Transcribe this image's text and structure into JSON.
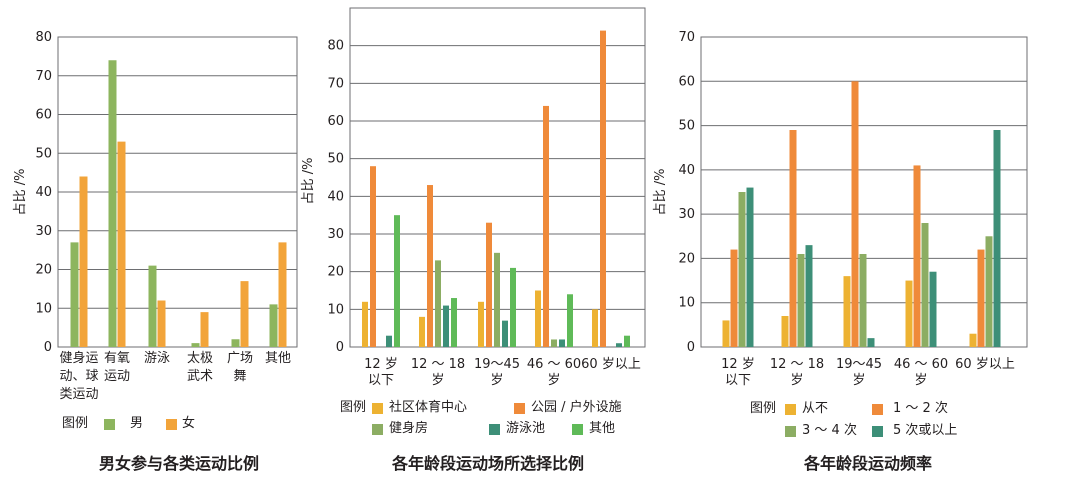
{
  "colors": {
    "male": "#8db55e",
    "female": "#f2a43a",
    "community": "#edb232",
    "park": "#ef8a3a",
    "gym": "#8cad63",
    "pool": "#3d8f78",
    "other": "#5fba58",
    "never": "#edb232",
    "f1_2": "#ef8a3a",
    "f3_4": "#8cad63",
    "f5plus": "#3d8f78"
  },
  "chart_data": [
    {
      "type": "bar",
      "title": "男女参与各类运动比例",
      "ylabel": "占比 /%",
      "ylim": [
        0,
        80
      ],
      "yticks": [
        "0",
        "10",
        "20",
        "30",
        "40",
        "50",
        "60",
        "70",
        "80"
      ],
      "categories": [
        [
          "健身运",
          "动、球",
          "类运动"
        ],
        [
          "有氧",
          "运动"
        ],
        [
          "游泳"
        ],
        [
          "太极",
          "武术"
        ],
        [
          "广场",
          "舞"
        ],
        [
          "其他"
        ]
      ],
      "legend_title": "图例",
      "series": [
        {
          "name": "男",
          "color_key": "male",
          "values": [
            27,
            74,
            21,
            1,
            2,
            11
          ]
        },
        {
          "name": "女",
          "color_key": "female",
          "values": [
            44,
            53,
            12,
            9,
            17,
            27
          ]
        }
      ]
    },
    {
      "type": "bar",
      "title": "各年龄段运动场所选择比例",
      "ylabel": "占比 /%",
      "ylim": [
        0,
        90
      ],
      "yticks": [
        "0",
        "10",
        "20",
        "30",
        "40",
        "50",
        "60",
        "70",
        "80"
      ],
      "categories": [
        [
          "12 岁",
          "以下"
        ],
        [
          "12 ～ 18",
          "岁"
        ],
        [
          "19～45",
          "岁"
        ],
        [
          "46 ～ 60",
          "岁"
        ],
        [
          "60 岁以上"
        ]
      ],
      "legend_title": "图例",
      "series": [
        {
          "name": "社区体育中心",
          "color_key": "community",
          "values": [
            12,
            8,
            12,
            15,
            10
          ]
        },
        {
          "name": "公园 / 户外设施",
          "color_key": "park",
          "values": [
            48,
            43,
            33,
            64,
            84
          ]
        },
        {
          "name": "健身房",
          "color_key": "gym",
          "values": [
            0,
            23,
            25,
            2,
            0
          ]
        },
        {
          "name": "游泳池",
          "color_key": "pool",
          "values": [
            3,
            11,
            7,
            2,
            1
          ]
        },
        {
          "name": "其他",
          "color_key": "other",
          "values": [
            35,
            13,
            21,
            14,
            3
          ]
        }
      ]
    },
    {
      "type": "bar",
      "title": "各年龄段运动频率",
      "ylabel": "占比 /%",
      "ylim": [
        0,
        70
      ],
      "yticks": [
        "0",
        "10",
        "20",
        "30",
        "40",
        "50",
        "60",
        "70"
      ],
      "categories": [
        [
          "12 岁",
          "以下"
        ],
        [
          "12 ～ 18",
          "岁"
        ],
        [
          "19～45",
          "岁"
        ],
        [
          "46 ～ 60",
          "岁"
        ],
        [
          "60 岁以上"
        ]
      ],
      "legend_title": "图例",
      "series": [
        {
          "name": "从不",
          "color_key": "never",
          "values": [
            6,
            7,
            16,
            15,
            3
          ]
        },
        {
          "name": "1 ～ 2 次",
          "color_key": "f1_2",
          "values": [
            22,
            49,
            60,
            41,
            22
          ]
        },
        {
          "name": "3 ～ 4 次",
          "color_key": "f3_4",
          "values": [
            35,
            21,
            21,
            28,
            25
          ]
        },
        {
          "name": "5 次或以上",
          "color_key": "f5plus",
          "values": [
            36,
            23,
            2,
            17,
            49
          ]
        }
      ]
    }
  ]
}
